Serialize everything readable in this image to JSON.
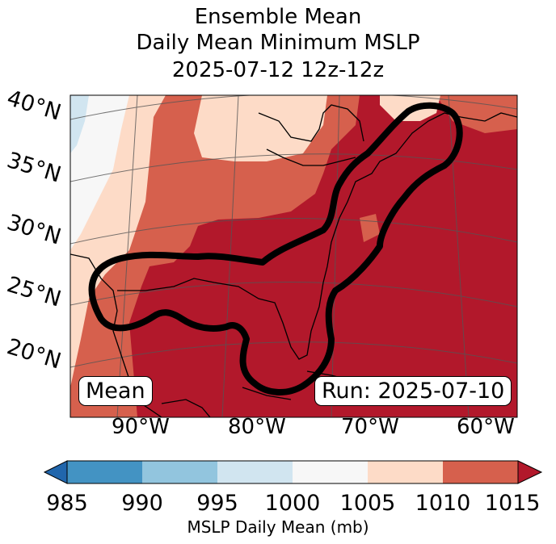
{
  "title": {
    "line1": "Ensemble Mean",
    "line2": "Daily Mean Minimum MSLP",
    "line3": "2025-07-12 12z-12z"
  },
  "map": {
    "lat_labels": [
      "40°N",
      "35°N",
      "30°N",
      "25°N",
      "20°N"
    ],
    "lon_labels": [
      "90°W",
      "80°W",
      "70°W",
      "60°W"
    ],
    "mean_label": "Mean",
    "run_label": "Run: 2025-07-10"
  },
  "colorbar": {
    "ticks": [
      "985",
      "990",
      "995",
      "1000",
      "1005",
      "1010",
      "1015"
    ],
    "label": "MSLP Daily Mean (mb)",
    "colors": [
      "#2166ac",
      "#4393c3",
      "#92c5de",
      "#d1e5f0",
      "#f7f7f7",
      "#fddbc7",
      "#d6604d",
      "#b2182b"
    ]
  }
}
